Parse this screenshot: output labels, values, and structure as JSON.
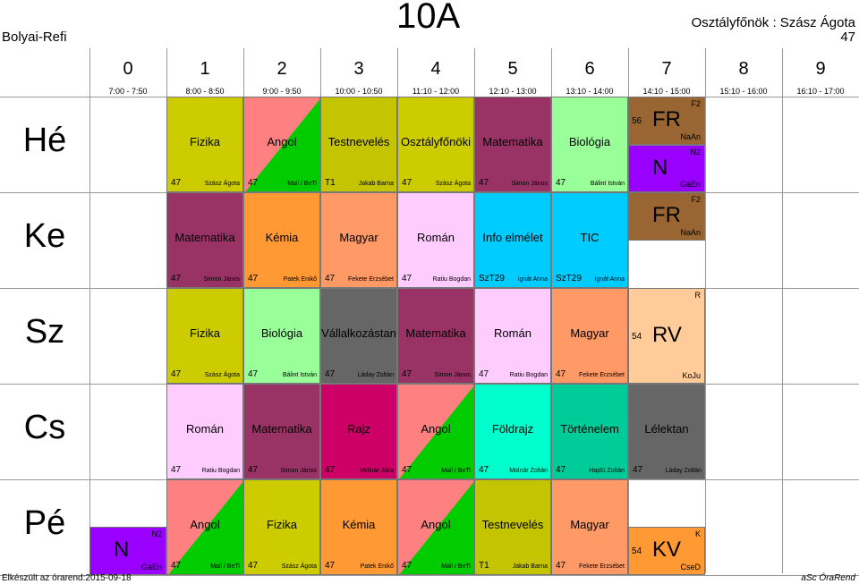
{
  "header": {
    "school": "Bolyai-Refi",
    "class": "10A",
    "head_teacher": "Osztályfőnök : Szász Ágota",
    "room": "47"
  },
  "periods": [
    {
      "n": "0",
      "t": "7:00 - 7:50"
    },
    {
      "n": "1",
      "t": "8:00 - 8:50"
    },
    {
      "n": "2",
      "t": "9:00 - 9:50"
    },
    {
      "n": "3",
      "t": "10:00 - 10:50"
    },
    {
      "n": "4",
      "t": "11:10 - 12:00"
    },
    {
      "n": "5",
      "t": "12:10 - 13:00"
    },
    {
      "n": "6",
      "t": "13:10 - 14:00"
    },
    {
      "n": "7",
      "t": "14:10 - 15:00"
    },
    {
      "n": "8",
      "t": "15:10 - 16:00"
    },
    {
      "n": "9",
      "t": "16:10 - 17:00"
    }
  ],
  "days": [
    "Hé",
    "Ke",
    "Sz",
    "Cs",
    "Pé"
  ],
  "lessons": [
    {
      "day": 0,
      "p": 1,
      "subj": "Fizika",
      "room": "47",
      "teacher": "Szász Ágota",
      "color": "#cccc00"
    },
    {
      "day": 0,
      "p": 2,
      "subj": "Angol",
      "room": "47",
      "teacher": "Mall / BeTi",
      "color": "#ff8080",
      "color2": "#00cc00"
    },
    {
      "day": 0,
      "p": 3,
      "subj": "Testnevelés",
      "room": "T1",
      "teacher": "Jakab Barna",
      "color": "#c4c400"
    },
    {
      "day": 0,
      "p": 4,
      "subj": "Osztályfőnöki",
      "room": "47",
      "teacher": "Szász Ágota",
      "color": "#cccc00"
    },
    {
      "day": 0,
      "p": 5,
      "subj": "Matematika",
      "room": "47",
      "teacher": "Simon János",
      "color": "#993366"
    },
    {
      "day": 0,
      "p": 6,
      "subj": "Biológia",
      "room": "47",
      "teacher": "Bálint István",
      "color": "#99ff99"
    },
    {
      "day": 1,
      "p": 1,
      "subj": "Matematika",
      "room": "47",
      "teacher": "Simon János",
      "color": "#993366"
    },
    {
      "day": 1,
      "p": 2,
      "subj": "Kémia",
      "room": "47",
      "teacher": "Patek Enikő",
      "color": "#ff9933"
    },
    {
      "day": 1,
      "p": 3,
      "subj": "Magyar",
      "room": "47",
      "teacher": "Fekete Erzsébet",
      "color": "#ff9966"
    },
    {
      "day": 1,
      "p": 4,
      "subj": "Román",
      "room": "47",
      "teacher": "Ratiu Bogdan",
      "color": "#ffccff"
    },
    {
      "day": 1,
      "p": 5,
      "subj": "Info elmélet",
      "room": "SzT29",
      "teacher": "Ignát Anna",
      "color": "#00ccff"
    },
    {
      "day": 1,
      "p": 6,
      "subj": "TIC",
      "room": "SzT29",
      "teacher": "Ignát Anna",
      "color": "#00ccff"
    },
    {
      "day": 2,
      "p": 1,
      "subj": "Fizika",
      "room": "47",
      "teacher": "Szász Ágota",
      "color": "#cccc00"
    },
    {
      "day": 2,
      "p": 2,
      "subj": "Biológia",
      "room": "47",
      "teacher": "Bálint István",
      "color": "#99ff99"
    },
    {
      "day": 2,
      "p": 3,
      "subj": "Vállalkozástan",
      "room": "47",
      "teacher": "Láday Zoltán",
      "color": "#666666"
    },
    {
      "day": 2,
      "p": 4,
      "subj": "Matematika",
      "room": "47",
      "teacher": "Simon János",
      "color": "#993366"
    },
    {
      "day": 2,
      "p": 5,
      "subj": "Román",
      "room": "47",
      "teacher": "Ratiu Bogdan",
      "color": "#ffccff"
    },
    {
      "day": 2,
      "p": 6,
      "subj": "Magyar",
      "room": "47",
      "teacher": "Fekete Erzsébet",
      "color": "#ff9966"
    },
    {
      "day": 3,
      "p": 1,
      "subj": "Román",
      "room": "47",
      "teacher": "Ratiu Bogdan",
      "color": "#ffccff"
    },
    {
      "day": 3,
      "p": 2,
      "subj": "Matematika",
      "room": "47",
      "teacher": "Simon János",
      "color": "#993366"
    },
    {
      "day": 3,
      "p": 3,
      "subj": "Rajz",
      "room": "47",
      "teacher": "Molnár Júlia",
      "color": "#cc0066"
    },
    {
      "day": 3,
      "p": 4,
      "subj": "Angol",
      "room": "47",
      "teacher": "Mall / BeTi",
      "color": "#ff8080",
      "color2": "#00cc00"
    },
    {
      "day": 3,
      "p": 5,
      "subj": "Földrajz",
      "room": "47",
      "teacher": "Molnár Zoltán",
      "color": "#00ffcc"
    },
    {
      "day": 3,
      "p": 6,
      "subj": "Történelem",
      "room": "47",
      "teacher": "Hajdú Zoltán",
      "color": "#00cc99"
    },
    {
      "day": 3,
      "p": 7,
      "subj": "Lélektan",
      "room": "47",
      "teacher": "Láday Zoltán",
      "color": "#666666"
    },
    {
      "day": 4,
      "p": 1,
      "subj": "Angol",
      "room": "47",
      "teacher": "Mall / BeTi",
      "color": "#ff8080",
      "color2": "#00cc00"
    },
    {
      "day": 4,
      "p": 2,
      "subj": "Fizika",
      "room": "47",
      "teacher": "Szász Ágota",
      "color": "#cccc00"
    },
    {
      "day": 4,
      "p": 3,
      "subj": "Kémia",
      "room": "47",
      "teacher": "Patek Enikő",
      "color": "#ff9933"
    },
    {
      "day": 4,
      "p": 4,
      "subj": "Angol",
      "room": "47",
      "teacher": "Mall / BeTi",
      "color": "#ff8080",
      "color2": "#00cc00"
    },
    {
      "day": 4,
      "p": 5,
      "subj": "Testnevelés",
      "room": "T1",
      "teacher": "Jakab Barna",
      "color": "#c4c400"
    },
    {
      "day": 4,
      "p": 6,
      "subj": "Magyar",
      "room": "47",
      "teacher": "Fekete Erzsébet",
      "color": "#ff9966"
    }
  ],
  "groups": [
    {
      "id": "he7a",
      "abbr": "FR",
      "grp": "F2",
      "teacher": "NaAn",
      "room": "56",
      "color": "#996633"
    },
    {
      "id": "he7b",
      "abbr": "N",
      "grp": "N2",
      "teacher": "GáEn",
      "color": "#9900ff"
    },
    {
      "id": "ke7",
      "abbr": "FR",
      "grp": "F2",
      "teacher": "NaAn",
      "color": "#996633"
    },
    {
      "id": "sz7",
      "abbr": "RV",
      "grp": "R",
      "teacher": "KoJu",
      "room": "54",
      "color": "#ffcc99"
    },
    {
      "id": "pe0",
      "abbr": "N",
      "grp": "N2",
      "teacher": "GáEn",
      "color": "#9900ff"
    },
    {
      "id": "pe7",
      "abbr": "KV",
      "grp": "K",
      "teacher": "CseD",
      "room": "54",
      "color": "#ff9933"
    }
  ],
  "footer": {
    "left": "Elkészült az órarend:2015-09-18",
    "right": "aSc ÓraRend"
  }
}
